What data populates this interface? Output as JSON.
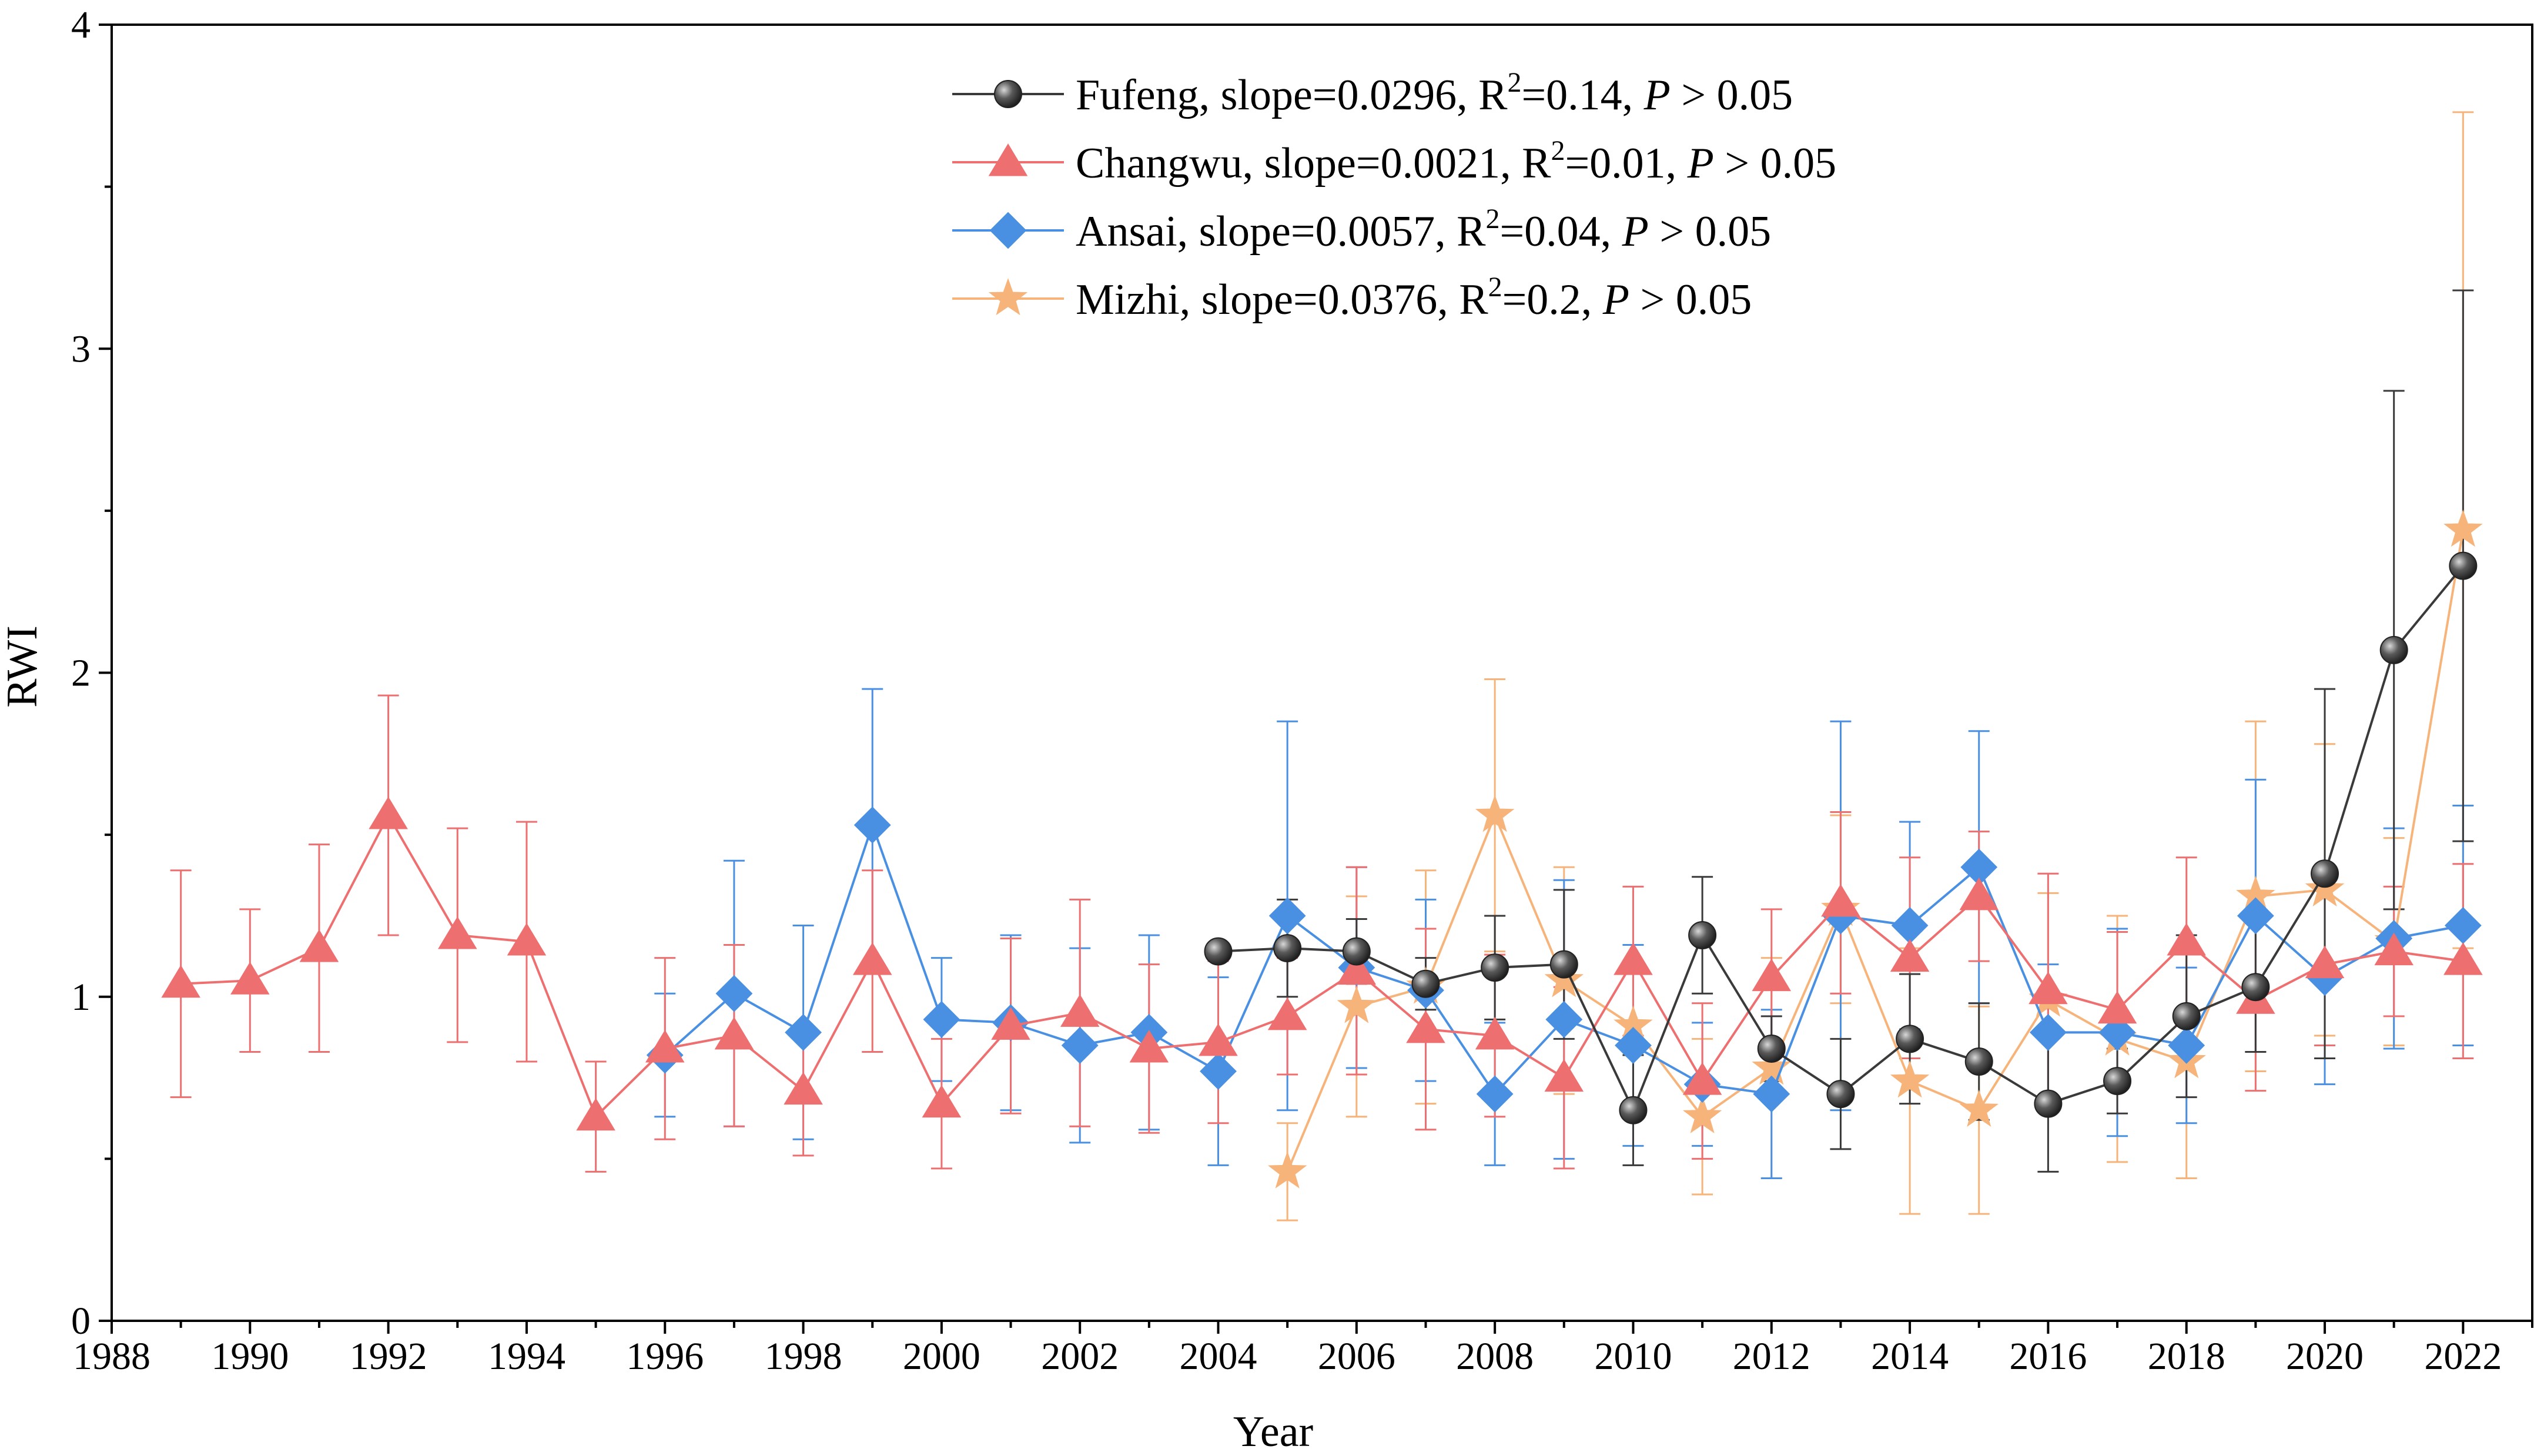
{
  "chart_data": {
    "type": "line",
    "xlabel": "Year",
    "ylabel": "RWI",
    "xlim": [
      1988,
      2023
    ],
    "ylim": [
      0,
      4
    ],
    "xticks": [
      "1988",
      "1990",
      "1992",
      "1994",
      "1996",
      "1998",
      "2000",
      "2002",
      "2004",
      "2006",
      "2008",
      "2010",
      "2012",
      "2014",
      "2016",
      "2018",
      "2020",
      "2022"
    ],
    "yticks": [
      "0",
      "1",
      "2",
      "3",
      "4"
    ],
    "legend_position": "top-center",
    "series": [
      {
        "name": "Fufeng",
        "legend_prefix": "Fufeng, slope=0.0296, R",
        "legend_r2": "=0.14, ",
        "legend_p": "P",
        "legend_suffix": " > 0.05",
        "color": "#3a3a3a",
        "marker": "sphere",
        "years": [
          2004,
          2005,
          2006,
          2007,
          2008,
          2009,
          2010,
          2011,
          2012,
          2013,
          2014,
          2015,
          2016,
          2017,
          2018,
          2019,
          2020,
          2021,
          2022
        ],
        "values": [
          1.14,
          1.15,
          1.14,
          1.04,
          1.09,
          1.1,
          0.65,
          1.19,
          0.84,
          0.7,
          0.87,
          0.8,
          0.67,
          0.74,
          0.94,
          1.03,
          1.38,
          2.07,
          2.33
        ],
        "errors": [
          0.0,
          0.15,
          0.1,
          0.08,
          0.16,
          0.23,
          0.17,
          0.18,
          0.1,
          0.17,
          0.2,
          0.18,
          0.21,
          0.1,
          0.25,
          0.2,
          0.57,
          0.8,
          0.85
        ]
      },
      {
        "name": "Changwu",
        "legend_prefix": "Changwu, slope=0.0021, R",
        "legend_r2": "=0.01, ",
        "legend_p": "P",
        "legend_suffix": " > 0.05",
        "color": "#ee6f6f",
        "marker": "triangle",
        "years": [
          1989,
          1990,
          1991,
          1992,
          1993,
          1994,
          1995,
          1996,
          1997,
          1998,
          1999,
          2000,
          2001,
          2002,
          2003,
          2004,
          2005,
          2006,
          2007,
          2008,
          2009,
          2010,
          2011,
          2012,
          2013,
          2014,
          2015,
          2016,
          2017,
          2018,
          2019,
          2020,
          2021,
          2022
        ],
        "values": [
          1.04,
          1.05,
          1.15,
          1.56,
          1.19,
          1.17,
          0.63,
          0.84,
          0.88,
          0.71,
          1.11,
          0.67,
          0.91,
          0.95,
          0.84,
          0.86,
          0.94,
          1.08,
          0.9,
          0.88,
          0.75,
          1.11,
          0.74,
          1.06,
          1.29,
          1.12,
          1.31,
          1.02,
          0.96,
          1.17,
          0.99,
          1.1,
          1.14,
          1.11
        ],
        "errors": [
          0.35,
          0.22,
          0.32,
          0.37,
          0.33,
          0.37,
          0.17,
          0.28,
          0.28,
          0.2,
          0.28,
          0.2,
          0.27,
          0.35,
          0.26,
          0.25,
          0.18,
          0.32,
          0.31,
          0.25,
          0.28,
          0.23,
          0.24,
          0.21,
          0.28,
          0.31,
          0.2,
          0.36,
          0.24,
          0.26,
          0.28,
          0.25,
          0.2,
          0.3
        ]
      },
      {
        "name": "Ansai",
        "legend_prefix": "Ansai, slope=0.0057, R",
        "legend_r2": "=0.04, ",
        "legend_p": "P",
        "legend_suffix": " > 0.05",
        "color": "#4a90e2",
        "marker": "diamond",
        "years": [
          1996,
          1997,
          1998,
          1999,
          2000,
          2001,
          2002,
          2003,
          2004,
          2005,
          2006,
          2007,
          2008,
          2009,
          2010,
          2011,
          2012,
          2013,
          2014,
          2015,
          2016,
          2017,
          2018,
          2019,
          2020,
          2021,
          2022
        ],
        "values": [
          0.82,
          1.01,
          0.89,
          1.53,
          0.93,
          0.92,
          0.85,
          0.89,
          0.77,
          1.25,
          1.09,
          1.02,
          0.7,
          0.93,
          0.85,
          0.73,
          0.7,
          1.25,
          1.22,
          1.4,
          0.89,
          0.89,
          0.85,
          1.25,
          1.06,
          1.18,
          1.22
        ],
        "errors": [
          0.19,
          0.41,
          0.33,
          0.42,
          0.19,
          0.27,
          0.3,
          0.3,
          0.29,
          0.6,
          0.31,
          0.28,
          0.22,
          0.43,
          0.31,
          0.19,
          0.26,
          0.6,
          0.32,
          0.42,
          0.21,
          0.32,
          0.24,
          0.42,
          0.33,
          0.34,
          0.37
        ]
      },
      {
        "name": "Mizhi",
        "legend_prefix": "Mizhi, slope=0.0376, R",
        "legend_r2": "=0.2, ",
        "legend_p": "P",
        "legend_suffix": " > 0.05",
        "color": "#f7b47a",
        "marker": "star",
        "years": [
          2005,
          2006,
          2007,
          2008,
          2009,
          2010,
          2011,
          2012,
          2013,
          2014,
          2015,
          2016,
          2017,
          2018,
          2019,
          2020,
          2021,
          2022
        ],
        "values": [
          0.46,
          0.97,
          1.03,
          1.56,
          1.05,
          0.91,
          0.63,
          0.78,
          1.27,
          0.74,
          0.65,
          0.99,
          0.87,
          0.8,
          1.31,
          1.33,
          1.17,
          2.44
        ],
        "errors": [
          0.15,
          0.34,
          0.36,
          0.42,
          0.35,
          0.25,
          0.24,
          0.34,
          0.29,
          0.41,
          0.32,
          0.33,
          0.38,
          0.36,
          0.54,
          0.45,
          0.32,
          1.29
        ]
      }
    ]
  }
}
